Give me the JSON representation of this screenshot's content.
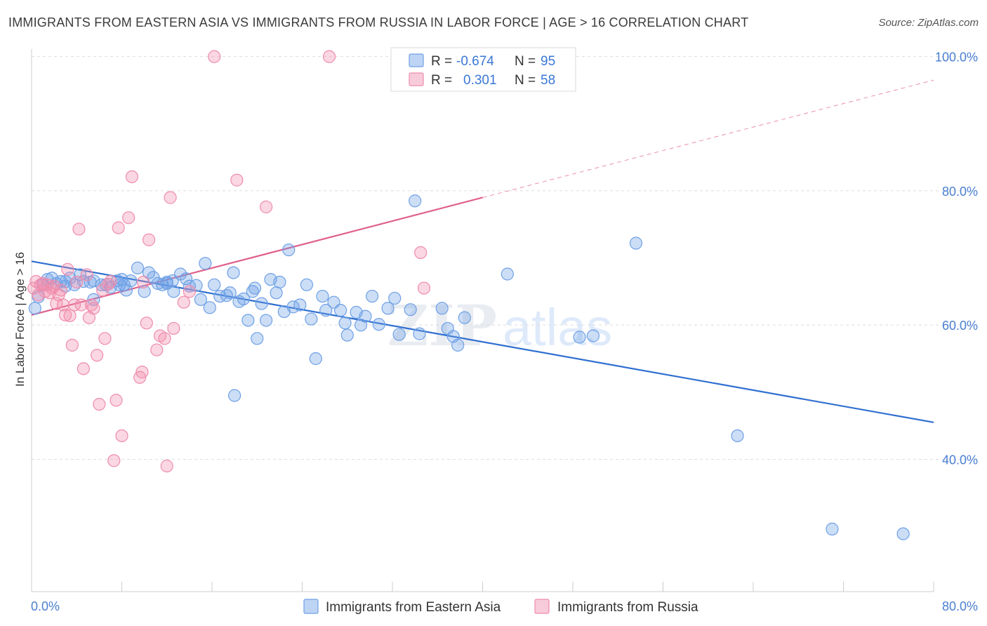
{
  "header": {
    "title": "IMMIGRANTS FROM EASTERN ASIA VS IMMIGRANTS FROM RUSSIA IN LABOR FORCE | AGE > 16 CORRELATION CHART",
    "source": "Source: ZipAtlas.com"
  },
  "watermark": {
    "zip": "ZIP",
    "atlas": "atlas"
  },
  "legend": {
    "series": [
      {
        "r_label": "R =",
        "r_value": "-0.674",
        "n_label": "N =",
        "n_value": "95",
        "color": "#6ea0e6"
      },
      {
        "r_label": "R =",
        "r_value": "0.301",
        "n_label": "N =",
        "n_value": "58",
        "color": "#f08cac"
      }
    ]
  },
  "chart_data": {
    "type": "scatter",
    "title": "IMMIGRANTS FROM EASTERN ASIA VS IMMIGRANTS FROM RUSSIA IN LABOR FORCE | AGE > 16 CORRELATION CHART",
    "xlabel": "",
    "ylabel": "In Labor Force | Age > 16",
    "xlim": [
      0,
      80
    ],
    "ylim": [
      20,
      102
    ],
    "x_tick_labels": [
      "0.0%",
      "80.0%"
    ],
    "y_ticks": [
      40,
      60,
      80,
      100
    ],
    "y_tick_labels": [
      "40.0%",
      "60.0%",
      "80.0%",
      "100.0%"
    ],
    "grid": true,
    "legend_position": "top-center",
    "series": [
      {
        "name": "Immigrants from Eastern Asia",
        "color": "#6ea0e6",
        "line_color": "#2f6fd0",
        "trend": {
          "x": [
            0,
            80
          ],
          "y": [
            69.5,
            45.5
          ],
          "dashed_to": null
        },
        "points": [
          [
            0.3,
            62.5
          ],
          [
            0.6,
            64.2
          ],
          [
            1.0,
            66.0
          ],
          [
            1.4,
            66.8
          ],
          [
            1.8,
            67.0
          ],
          [
            2.2,
            66.2
          ],
          [
            2.6,
            66.5
          ],
          [
            3.0,
            66.5
          ],
          [
            3.4,
            67.0
          ],
          [
            3.8,
            66.0
          ],
          [
            4.3,
            67.5
          ],
          [
            4.6,
            66.5
          ],
          [
            5.2,
            66.4
          ],
          [
            5.5,
            63.8
          ],
          [
            6.2,
            66.0
          ],
          [
            6.6,
            66.0
          ],
          [
            7.0,
            65.6
          ],
          [
            7.6,
            66.6
          ],
          [
            8.2,
            66.0
          ],
          [
            8.4,
            65.2
          ],
          [
            8.8,
            66.6
          ],
          [
            9.4,
            68.5
          ],
          [
            10.0,
            65.0
          ],
          [
            10.4,
            67.8
          ],
          [
            10.8,
            67.1
          ],
          [
            11.2,
            66.2
          ],
          [
            11.6,
            66.0
          ],
          [
            12.0,
            66.2
          ],
          [
            12.5,
            66.6
          ],
          [
            13.2,
            67.6
          ],
          [
            13.7,
            66.9
          ],
          [
            14.0,
            65.8
          ],
          [
            14.6,
            65.9
          ],
          [
            15.0,
            63.8
          ],
          [
            15.4,
            69.2
          ],
          [
            15.8,
            62.6
          ],
          [
            16.2,
            66.0
          ],
          [
            16.7,
            64.3
          ],
          [
            17.3,
            64.4
          ],
          [
            17.6,
            64.8
          ],
          [
            17.9,
            67.8
          ],
          [
            18.4,
            63.5
          ],
          [
            18.8,
            63.9
          ],
          [
            19.2,
            60.7
          ],
          [
            19.6,
            65.0
          ],
          [
            20.0,
            58.0
          ],
          [
            20.4,
            63.2
          ],
          [
            20.8,
            60.7
          ],
          [
            21.2,
            66.8
          ],
          [
            21.7,
            64.8
          ],
          [
            22.0,
            66.4
          ],
          [
            22.4,
            62.0
          ],
          [
            22.8,
            71.2
          ],
          [
            23.2,
            62.7
          ],
          [
            23.8,
            63.0
          ],
          [
            24.4,
            66.0
          ],
          [
            24.8,
            60.9
          ],
          [
            25.2,
            55.0
          ],
          [
            25.8,
            64.3
          ],
          [
            26.1,
            62.2
          ],
          [
            26.8,
            63.4
          ],
          [
            27.4,
            62.2
          ],
          [
            27.8,
            60.3
          ],
          [
            28.0,
            58.5
          ],
          [
            28.8,
            61.9
          ],
          [
            29.2,
            60.0
          ],
          [
            29.6,
            61.3
          ],
          [
            30.2,
            64.3
          ],
          [
            30.8,
            60.1
          ],
          [
            31.6,
            62.5
          ],
          [
            32.2,
            64.0
          ],
          [
            32.6,
            58.6
          ],
          [
            33.6,
            62.3
          ],
          [
            34.0,
            78.5
          ],
          [
            34.4,
            58.7
          ],
          [
            36.4,
            62.5
          ],
          [
            36.9,
            59.5
          ],
          [
            37.4,
            58.3
          ],
          [
            38.4,
            61.1
          ],
          [
            42.2,
            67.6
          ],
          [
            48.6,
            58.2
          ],
          [
            49.8,
            58.4
          ],
          [
            53.6,
            72.2
          ],
          [
            62.6,
            43.5
          ],
          [
            71.0,
            29.6
          ],
          [
            77.3,
            28.9
          ],
          [
            8.0,
            66.8
          ],
          [
            12.6,
            65.0
          ],
          [
            3.0,
            65.8
          ],
          [
            5.5,
            66.6
          ],
          [
            12.0,
            66.4
          ],
          [
            19.8,
            65.5
          ],
          [
            7.8,
            66.0
          ],
          [
            18.0,
            49.5
          ],
          [
            37.8,
            57.0
          ]
        ]
      },
      {
        "name": "Immigrants from Russia",
        "color": "#f08cac",
        "line_color": "#e0608c",
        "trend": {
          "x": [
            0,
            40
          ],
          "y": [
            61.5,
            79.0
          ],
          "dashed_x": [
            40,
            80
          ],
          "dashed_y": [
            79.0,
            96.5
          ]
        },
        "points": [
          [
            0.2,
            65.5
          ],
          [
            0.4,
            66.5
          ],
          [
            0.6,
            64.5
          ],
          [
            0.8,
            66.0
          ],
          [
            1.0,
            66.2
          ],
          [
            1.2,
            65.0
          ],
          [
            1.4,
            66.0
          ],
          [
            1.6,
            64.8
          ],
          [
            1.8,
            65.5
          ],
          [
            2.0,
            65.8
          ],
          [
            2.2,
            63.2
          ],
          [
            2.4,
            64.5
          ],
          [
            2.6,
            65.2
          ],
          [
            2.8,
            63.0
          ],
          [
            3.0,
            61.5
          ],
          [
            3.2,
            68.3
          ],
          [
            3.4,
            61.4
          ],
          [
            3.6,
            57.0
          ],
          [
            3.8,
            63.0
          ],
          [
            4.0,
            66.4
          ],
          [
            4.2,
            74.3
          ],
          [
            4.4,
            63.0
          ],
          [
            4.6,
            53.5
          ],
          [
            4.9,
            67.5
          ],
          [
            5.1,
            61.1
          ],
          [
            5.3,
            63.0
          ],
          [
            5.5,
            62.5
          ],
          [
            5.8,
            55.5
          ],
          [
            6.0,
            48.2
          ],
          [
            6.3,
            65.2
          ],
          [
            6.5,
            58.0
          ],
          [
            6.8,
            66.1
          ],
          [
            7.0,
            66.5
          ],
          [
            7.3,
            39.8
          ],
          [
            7.5,
            48.8
          ],
          [
            7.7,
            74.5
          ],
          [
            8.0,
            43.5
          ],
          [
            8.6,
            76.0
          ],
          [
            8.9,
            82.1
          ],
          [
            9.6,
            52.2
          ],
          [
            9.8,
            53.0
          ],
          [
            10.2,
            60.3
          ],
          [
            10.4,
            72.7
          ],
          [
            11.1,
            56.3
          ],
          [
            11.4,
            58.4
          ],
          [
            11.8,
            58.0
          ],
          [
            12.0,
            39.0
          ],
          [
            12.3,
            79.0
          ],
          [
            12.6,
            59.5
          ],
          [
            13.5,
            63.4
          ],
          [
            14.0,
            65.0
          ],
          [
            16.2,
            100.0
          ],
          [
            18.2,
            81.6
          ],
          [
            20.8,
            77.6
          ],
          [
            26.4,
            100.0
          ],
          [
            34.5,
            70.8
          ],
          [
            34.8,
            65.5
          ],
          [
            9.9,
            66.4
          ]
        ]
      }
    ]
  }
}
